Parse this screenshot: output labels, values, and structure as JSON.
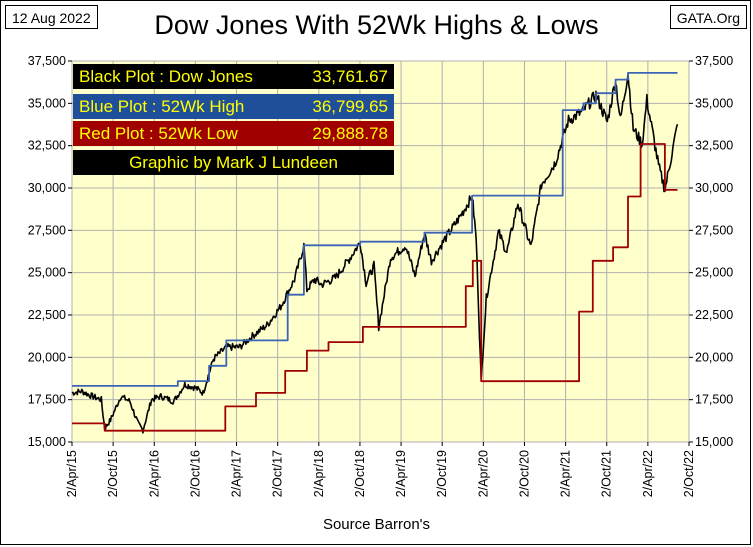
{
  "header": {
    "date": "12 Aug 2022",
    "site": "GATA.Org",
    "title": "Dow Jones With 52Wk Highs & Lows"
  },
  "legend": {
    "black_label": "Black Plot : Dow Jones",
    "black_value": "33,761.67",
    "blue_label": "Blue Plot  :  52Wk High",
    "blue_value": "36,799.65",
    "red_label": "Red Plot   :  52Wk Low",
    "red_value": "29,888.78",
    "credit": "Graphic by Mark J Lundeen"
  },
  "footer": {
    "source": "Source Barron's"
  },
  "colors": {
    "plot_background": "#ffffcc",
    "dow_line": "#000000",
    "high_line": "#3c64b4",
    "low_line": "#a00000"
  },
  "chart_data": {
    "type": "line",
    "title": "Dow Jones With 52Wk Highs & Lows",
    "xlabel": "Source Barron's",
    "ylabel": "",
    "x_range": [
      "2015-04-02",
      "2022-10-02"
    ],
    "ylim": [
      15000,
      37500
    ],
    "yticks": [
      "15,000",
      "17,500",
      "20,000",
      "22,500",
      "25,000",
      "27,500",
      "30,000",
      "32,500",
      "35,000",
      "37,500"
    ],
    "ytick_values": [
      15000,
      17500,
      20000,
      22500,
      25000,
      27500,
      30000,
      32500,
      35000,
      37500
    ],
    "xticks": [
      "2/Apr/15",
      "2/Oct/15",
      "2/Apr/16",
      "2/Oct/16",
      "2/Apr/17",
      "2/Oct/17",
      "2/Apr/18",
      "2/Oct/18",
      "2/Apr/19",
      "2/Oct/19",
      "2/Apr/20",
      "2/Oct/20",
      "2/Apr/21",
      "2/Oct/21",
      "2/Apr/22",
      "2/Oct/22"
    ],
    "grid": true,
    "series": [
      {
        "name": "Dow Jones",
        "color": "#000000",
        "x": [
          "2015-04-02",
          "2015-05-15",
          "2015-07-01",
          "2015-08-10",
          "2015-08-25",
          "2015-09-20",
          "2015-11-05",
          "2015-12-15",
          "2016-01-20",
          "2016-02-11",
          "2016-03-20",
          "2016-05-01",
          "2016-06-27",
          "2016-08-15",
          "2016-10-01",
          "2016-11-04",
          "2016-12-20",
          "2017-02-15",
          "2017-04-15",
          "2017-06-15",
          "2017-08-15",
          "2017-10-15",
          "2017-12-15",
          "2018-01-26",
          "2018-02-08",
          "2018-03-15",
          "2018-04-15",
          "2018-06-15",
          "2018-08-15",
          "2018-10-03",
          "2018-10-29",
          "2018-12-03",
          "2018-12-24",
          "2019-02-15",
          "2019-04-23",
          "2019-06-03",
          "2019-07-15",
          "2019-08-15",
          "2019-10-15",
          "2019-12-15",
          "2020-02-12",
          "2020-03-01",
          "2020-03-23",
          "2020-04-15",
          "2020-06-08",
          "2020-07-15",
          "2020-09-02",
          "2020-10-30",
          "2020-12-15",
          "2021-02-15",
          "2021-04-15",
          "2021-06-15",
          "2021-08-15",
          "2021-10-04",
          "2021-11-10",
          "2021-12-01",
          "2022-01-04",
          "2022-01-27",
          "2022-03-08",
          "2022-03-29",
          "2022-05-20",
          "2022-06-17",
          "2022-07-15",
          "2022-08-12"
        ],
        "values": [
          17900,
          18000,
          17700,
          17500,
          15800,
          16300,
          17700,
          17400,
          16100,
          15700,
          17500,
          17700,
          17400,
          18400,
          18200,
          17900,
          19900,
          20600,
          20600,
          21300,
          21900,
          23000,
          24600,
          26600,
          24000,
          24600,
          24300,
          24700,
          25800,
          26800,
          24400,
          25400,
          21800,
          25900,
          26600,
          24800,
          27300,
          25700,
          27000,
          28200,
          29500,
          27000,
          18600,
          23500,
          27400,
          26200,
          29100,
          26500,
          30200,
          31500,
          34000,
          34500,
          35500,
          33900,
          36400,
          34000,
          36800,
          33500,
          32600,
          35200,
          31300,
          29900,
          31800,
          33762
        ]
      },
      {
        "name": "52Wk High",
        "color": "#3c64b4",
        "x": [
          "2015-04-02",
          "2016-07-15",
          "2016-12-01",
          "2017-02-15",
          "2017-11-15",
          "2018-01-26",
          "2018-10-03",
          "2019-07-15",
          "2020-02-12",
          "2020-11-24",
          "2021-03-20",
          "2021-06-20",
          "2021-08-15",
          "2021-11-10",
          "2022-01-04",
          "2022-08-12"
        ],
        "values": [
          18312,
          18595,
          19500,
          21000,
          23700,
          26617,
          26828,
          27359,
          29551,
          29551,
          34600,
          35000,
          35600,
          36400,
          36800,
          36800
        ]
      },
      {
        "name": "52Wk Low",
        "color": "#a00000",
        "x": [
          "2015-04-02",
          "2015-08-25",
          "2016-08-25",
          "2017-02-11",
          "2017-06-27",
          "2017-11-04",
          "2018-02-08",
          "2018-05-15",
          "2018-10-15",
          "2019-02-08",
          "2019-10-15",
          "2020-01-15",
          "2020-02-15",
          "2020-03-23",
          "2021-03-23",
          "2021-06-01",
          "2021-08-01",
          "2021-10-30",
          "2022-01-04",
          "2022-03-01",
          "2022-06-17",
          "2022-08-12"
        ],
        "values": [
          16100,
          15666,
          15666,
          17100,
          17900,
          19200,
          20400,
          20900,
          21800,
          21800,
          21800,
          24200,
          25700,
          18592,
          18592,
          22700,
          25700,
          26500,
          29500,
          32600,
          29889,
          29889
        ]
      }
    ]
  }
}
